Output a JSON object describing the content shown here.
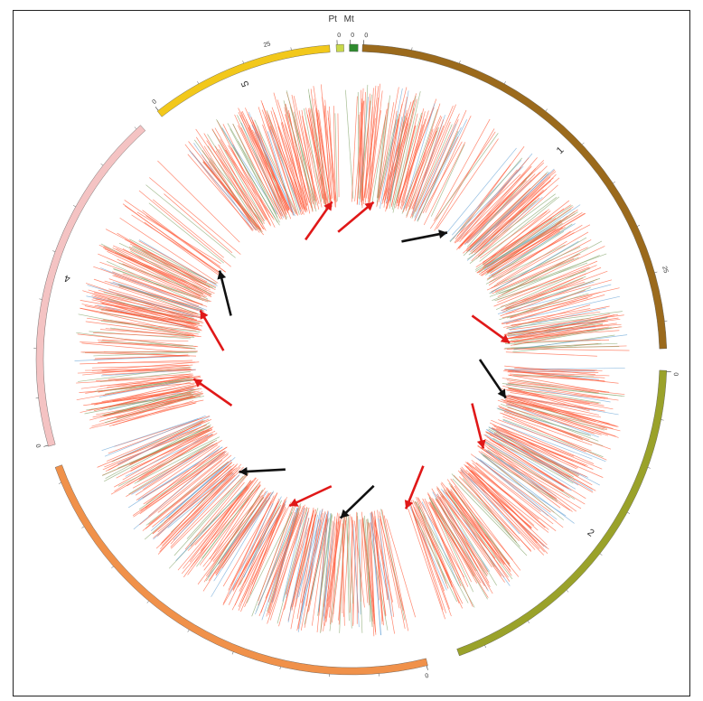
{
  "figure": {
    "chromosomes": [
      {
        "id": "1",
        "label": "1",
        "start_label": "0",
        "tick_label": "25",
        "color": "#9b6a1c"
      },
      {
        "id": "2",
        "label": "2",
        "start_label": "0",
        "color": "#9aa22a"
      },
      {
        "id": "3",
        "label": "",
        "start_label": "0",
        "color": "#f0914a"
      },
      {
        "id": "4",
        "label": "4",
        "start_label": "0",
        "color": "#f4c3c3"
      },
      {
        "id": "5",
        "label": "5",
        "start_label": "0",
        "tick_label": "25",
        "color": "#f2c81b"
      },
      {
        "id": "Pt",
        "label": "Pt",
        "start_label": "0",
        "color": "#c8d84a"
      },
      {
        "id": "Mt",
        "label": "Mt",
        "start_label": "0",
        "color": "#2e8a2e"
      }
    ],
    "link_colors": {
      "main": "#ff6040",
      "alt": "#8aa870",
      "blue": "#6fa8d8"
    },
    "arrows": [
      {
        "color": "red",
        "angle": -7
      },
      {
        "color": "red",
        "angle": 8
      },
      {
        "color": "black",
        "angle": 37
      },
      {
        "color": "red",
        "angle": 84
      },
      {
        "color": "black",
        "angle": 104
      },
      {
        "color": "red",
        "angle": 124
      },
      {
        "color": "red",
        "angle": 160
      },
      {
        "color": "black",
        "angle": 184
      },
      {
        "color": "red",
        "angle": 203
      },
      {
        "color": "black",
        "angle": 225
      },
      {
        "color": "red",
        "angle": 263
      },
      {
        "color": "red",
        "angle": 288
      },
      {
        "color": "black",
        "angle": 304
      }
    ]
  }
}
